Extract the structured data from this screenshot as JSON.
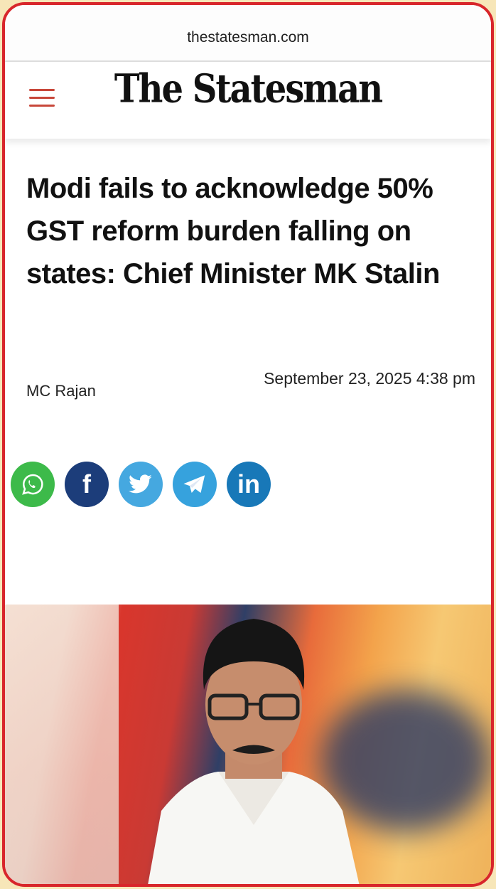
{
  "browser": {
    "url": "thestatesman.com"
  },
  "header": {
    "logo": "The Statesman",
    "menu_icon": "hamburger-icon"
  },
  "article": {
    "headline": "Modi fails to acknowledge 50% GST reform burden falling on states: Chief Minister MK Stalin",
    "author": "MC Rajan",
    "date": "September 23, 2025 4:38 pm"
  },
  "share": [
    {
      "name": "whatsapp-icon",
      "color": "#3dba4a"
    },
    {
      "name": "facebook-icon",
      "color": "#1c3d7a",
      "glyph": "f"
    },
    {
      "name": "twitter-icon",
      "color": "#45a8e0"
    },
    {
      "name": "telegram-icon",
      "color": "#36a2dd"
    },
    {
      "name": "linkedin-icon",
      "color": "#1878b8",
      "glyph": "in"
    }
  ],
  "colors": {
    "frame": "#d8262b",
    "menu": "#c8473a"
  }
}
